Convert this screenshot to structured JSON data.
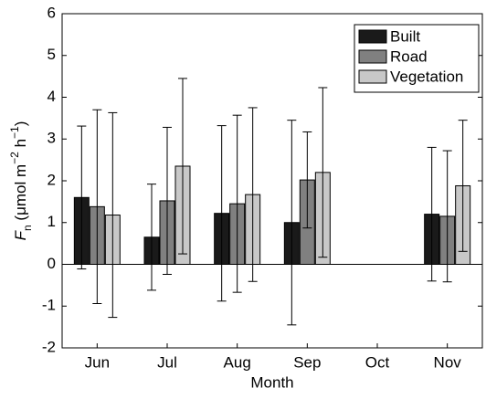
{
  "chart_data": {
    "type": "bar",
    "x_label": "Month",
    "y_label_parts": [
      {
        "text": "F",
        "style": "italic"
      },
      {
        "text": "n",
        "style": "sub"
      },
      {
        "text": " (μmol m",
        "style": "normal"
      },
      {
        "text": "−2",
        "style": "sup"
      },
      {
        "text": " h",
        "style": "normal"
      },
      {
        "text": "−1",
        "style": "sup"
      },
      {
        "text": ")",
        "style": "normal"
      }
    ],
    "categories": [
      "Jun",
      "Jul",
      "Aug",
      "Sep",
      "Oct",
      "Nov"
    ],
    "series": [
      {
        "name": "Built",
        "color": "#1a1a1a",
        "values": [
          1.6,
          0.65,
          1.22,
          1.0,
          0,
          1.2
        ],
        "errors": [
          1.71,
          1.27,
          2.1,
          2.45,
          null,
          1.6
        ]
      },
      {
        "name": "Road",
        "color": "#808080",
        "values": [
          1.38,
          1.52,
          1.45,
          2.02,
          0,
          1.15
        ],
        "errors": [
          2.32,
          1.76,
          2.12,
          1.15,
          null,
          1.57
        ]
      },
      {
        "name": "Vegetation",
        "color": "#c8c8c8",
        "values": [
          1.18,
          2.35,
          1.67,
          2.2,
          0,
          1.88
        ],
        "errors": [
          2.45,
          2.1,
          2.08,
          2.03,
          null,
          1.57
        ]
      }
    ],
    "ylim": [
      -2,
      6
    ],
    "yticks": [
      -2,
      -1,
      0,
      1,
      2,
      3,
      4,
      5,
      6
    ],
    "legend": "upper right"
  }
}
